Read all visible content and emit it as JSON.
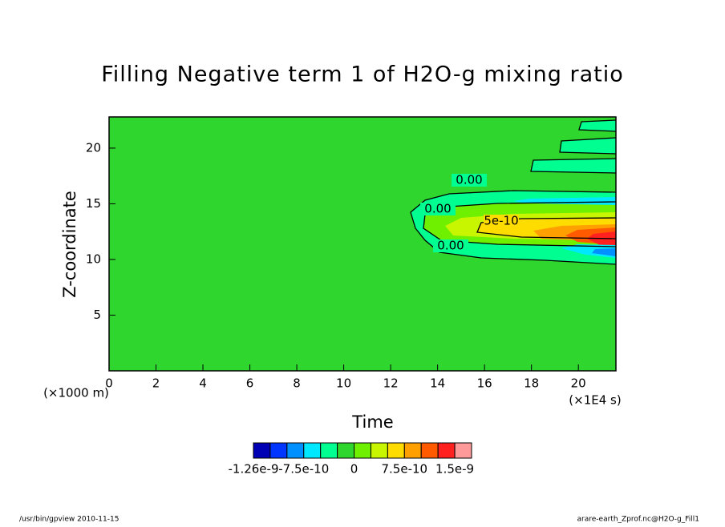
{
  "chart_data": {
    "type": "contour",
    "title": "Filling Negative term 1 of H2O-g mixing ratio",
    "x_label": "Time",
    "x_unit": "(×1E4 s)",
    "y_label": "Z-coordinate",
    "y_unit": "(×1000 m)",
    "xlim": [
      0,
      21.6
    ],
    "xticks": [
      0,
      2,
      4,
      6,
      8,
      10,
      12,
      14,
      16,
      18,
      20
    ],
    "ylim": [
      0,
      22.8
    ],
    "yticks": [
      5,
      10,
      15,
      20
    ],
    "contour_labels": [
      "0.00",
      "0.00",
      "5e-10",
      "0.00"
    ],
    "colorbar": {
      "colors": [
        "#0000b4",
        "#0036ff",
        "#0090ff",
        "#00e8ff",
        "#00ff90",
        "#2ed62e",
        "#6ef000",
        "#c8f500",
        "#ffdc00",
        "#ffa000",
        "#ff5a00",
        "#ff2020",
        "#ff9a9a"
      ],
      "levels": [
        -1.26e-09,
        -1.25e-09,
        -1e-09,
        -7.5e-10,
        -5e-10,
        -2.5e-10,
        0,
        2.5e-10,
        5e-10,
        7.5e-10,
        1e-09,
        1.25e-09,
        1.5e-09,
        1.75e-09
      ],
      "ticks": [
        -1.26e-09,
        -7.5e-10,
        0,
        7.5e-10,
        1.5e-09
      ]
    },
    "footer_left": "/usr/bin/gpview  2010-11-15",
    "footer_right": "arare-earth_Zprof.nc@H2O-g_Fill1"
  }
}
